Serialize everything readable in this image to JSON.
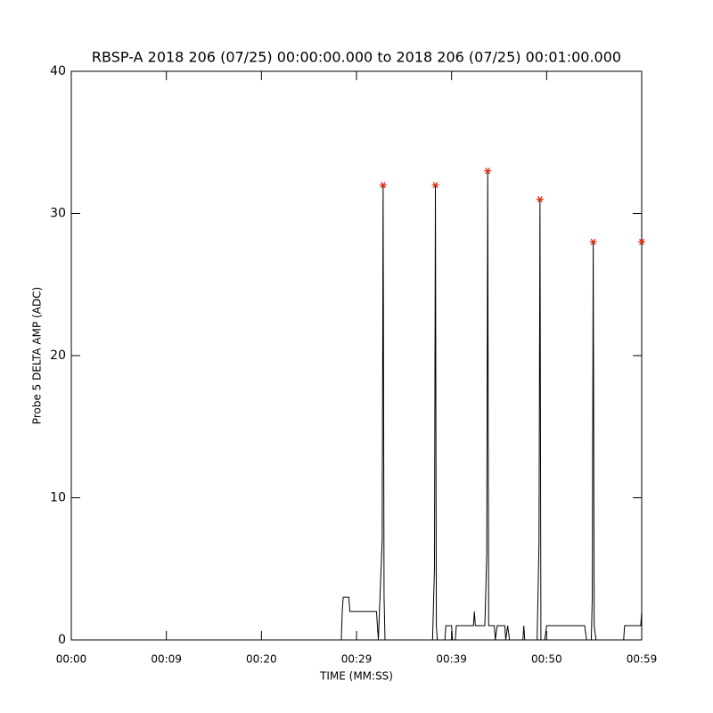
{
  "chart_data": {
    "type": "line",
    "title": "RBSP-A 2018 206 (07/25) 00:00:00.000 to 2018 206 (07/25) 00:01:00.000",
    "xlabel": "TIME (MM:SS)",
    "ylabel": "Probe 5 DELTA AMP (ADC)",
    "xlim": [
      0,
      60
    ],
    "ylim": [
      0,
      40
    ],
    "xticks": [
      {
        "value": 0,
        "label": "00:00"
      },
      {
        "value": 10,
        "label": "00:09"
      },
      {
        "value": 20,
        "label": "00:20"
      },
      {
        "value": 30,
        "label": "00:29"
      },
      {
        "value": 40,
        "label": "00:39"
      },
      {
        "value": 50,
        "label": "00:50"
      },
      {
        "value": 60,
        "label": "00:59"
      }
    ],
    "yticks": [
      0,
      10,
      20,
      30,
      40
    ],
    "series": [
      {
        "color": "#000000",
        "marker": "none",
        "x": [
          0,
          28.4,
          28.5,
          28.6,
          29.2,
          29.3,
          32.1,
          32.3,
          32.7,
          32.8,
          32.9,
          33.0,
          38.0,
          38.2,
          38.3,
          38.4,
          38.5,
          39.3,
          39.4,
          40.0,
          40.1,
          40.4,
          40.5,
          42.3,
          42.4,
          42.5,
          43.5,
          43.7,
          43.8,
          43.9,
          44.5,
          44.6,
          44.8,
          45.6,
          45.7,
          45.9,
          46.1,
          47.5,
          47.6,
          47.7,
          49.0,
          49.2,
          49.3,
          49.4,
          49.8,
          50.0,
          54.0,
          54.2,
          54.7,
          54.8,
          54.9,
          55.0,
          55.2,
          58.1,
          58.2,
          59.9,
          60
        ],
        "values": [
          0,
          0,
          2,
          3,
          3,
          2,
          2,
          0,
          7,
          32,
          3,
          0,
          0,
          5,
          32,
          1,
          0,
          0,
          1,
          1,
          0,
          0,
          1,
          1,
          2,
          1,
          1,
          6,
          33,
          1,
          1,
          0,
          1,
          1,
          0,
          1,
          0,
          0,
          1,
          0,
          0,
          7,
          31,
          0,
          0,
          1,
          1,
          0,
          0,
          3,
          28,
          1,
          0,
          0,
          1,
          1,
          2
        ]
      },
      {
        "color": "#e03010",
        "marker": "asterisk",
        "x": [
          32.8,
          38.3,
          43.8,
          49.3,
          54.9,
          60
        ],
        "values": [
          32,
          32,
          33,
          31,
          28,
          28
        ]
      }
    ]
  }
}
